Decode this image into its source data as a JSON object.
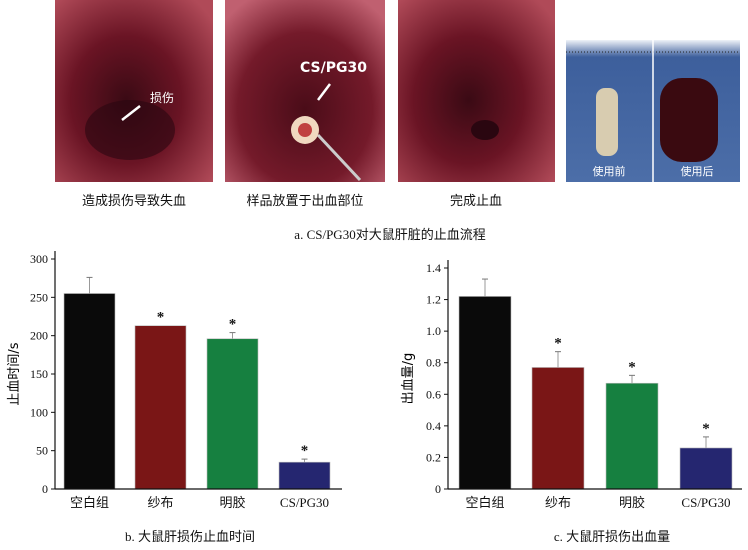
{
  "panel_a": {
    "photos": [
      {
        "caption": "造成损伤导致失血",
        "label": "损伤"
      },
      {
        "caption": "样品放置于出血部位",
        "label": "CS/PG30"
      },
      {
        "caption": "完成止血",
        "label": ""
      },
      {
        "caption": "",
        "label_before": "使用前",
        "label_after": "使用后"
      }
    ],
    "title": "a. CS/PG30对大鼠肝脏的止血流程"
  },
  "colors": {
    "blank": "#0a0a0a",
    "gauze": "#7a1616",
    "gelatin": "#168040",
    "cspg": "#252670"
  },
  "chart_data": [
    {
      "type": "bar",
      "title": "b. 大鼠肝损伤止血时间",
      "xlabel": "",
      "ylabel": "止血时间/s",
      "categories": [
        "空白组",
        "纱布",
        "明胶",
        "CS/PG30"
      ],
      "values": [
        255,
        213,
        196,
        35
      ],
      "errors": [
        21,
        0,
        8,
        4
      ],
      "significance": [
        "",
        "*",
        "*",
        "*"
      ],
      "ylim": [
        0,
        300
      ],
      "yticks": [
        0,
        50,
        100,
        150,
        200,
        250,
        300
      ],
      "ytick_labels": [
        "0",
        "50",
        "100",
        "150",
        "200",
        "250",
        "300"
      ],
      "grid": false
    },
    {
      "type": "bar",
      "title": "c. 大鼠肝损伤出血量",
      "xlabel": "",
      "ylabel": "出血量/g",
      "categories": [
        "空白组",
        "纱布",
        "明胶",
        "CS/PG30"
      ],
      "values": [
        1.22,
        0.77,
        0.67,
        0.26
      ],
      "errors": [
        0.11,
        0.1,
        0.05,
        0.07
      ],
      "significance": [
        "",
        "*",
        "*",
        "*"
      ],
      "ylim": [
        0,
        1.4
      ],
      "yticks": [
        0,
        0.2,
        0.4,
        0.6,
        0.8,
        1.0,
        1.2,
        1.4
      ],
      "ytick_labels": [
        "0",
        "0.2",
        "0.4",
        "0.6",
        "0.8",
        "1.0",
        "1.2",
        "1.4"
      ],
      "grid": false
    }
  ]
}
